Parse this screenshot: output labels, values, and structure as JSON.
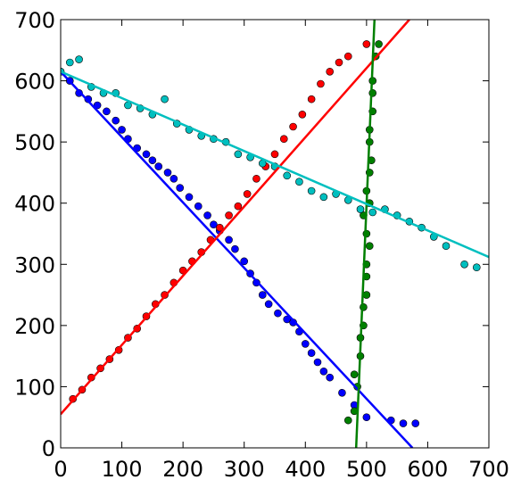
{
  "chart_data": {
    "type": "scatter",
    "title": "",
    "xlabel": "",
    "ylabel": "",
    "xlim": [
      0,
      700
    ],
    "ylim": [
      0,
      700
    ],
    "xticks": [
      0,
      100,
      200,
      300,
      400,
      500,
      600,
      700
    ],
    "yticks": [
      0,
      100,
      200,
      300,
      400,
      500,
      600,
      700
    ],
    "x_tick_labels": [
      "0",
      "100",
      "200",
      "300",
      "400",
      "500",
      "600",
      "700"
    ],
    "y_tick_labels": [
      "0",
      "100",
      "200",
      "300",
      "400",
      "500",
      "600",
      "700"
    ],
    "grid": false,
    "legend": "none",
    "series": [
      {
        "color": "#0000ff",
        "points": [
          [
            0,
            615
          ],
          [
            15,
            600
          ],
          [
            30,
            580
          ],
          [
            45,
            570
          ],
          [
            60,
            560
          ],
          [
            75,
            550
          ],
          [
            90,
            535
          ],
          [
            100,
            520
          ],
          [
            110,
            505
          ],
          [
            125,
            490
          ],
          [
            140,
            480
          ],
          [
            150,
            470
          ],
          [
            160,
            460
          ],
          [
            175,
            450
          ],
          [
            185,
            440
          ],
          [
            195,
            425
          ],
          [
            210,
            410
          ],
          [
            225,
            395
          ],
          [
            240,
            380
          ],
          [
            250,
            365
          ],
          [
            260,
            355
          ],
          [
            275,
            340
          ],
          [
            285,
            325
          ],
          [
            300,
            305
          ],
          [
            310,
            285
          ],
          [
            320,
            270
          ],
          [
            330,
            250
          ],
          [
            340,
            235
          ],
          [
            355,
            220
          ],
          [
            370,
            210
          ],
          [
            380,
            205
          ],
          [
            390,
            190
          ],
          [
            400,
            170
          ],
          [
            410,
            155
          ],
          [
            420,
            140
          ],
          [
            430,
            125
          ],
          [
            440,
            115
          ],
          [
            460,
            90
          ],
          [
            480,
            70
          ],
          [
            500,
            50
          ],
          [
            540,
            45
          ],
          [
            560,
            40
          ],
          [
            580,
            40
          ]
        ],
        "fit_line": [
          [
            0,
            615
          ],
          [
            575,
            0
          ]
        ]
      },
      {
        "color": "#ff0000",
        "points": [
          [
            20,
            80
          ],
          [
            35,
            95
          ],
          [
            50,
            115
          ],
          [
            65,
            130
          ],
          [
            80,
            145
          ],
          [
            95,
            160
          ],
          [
            110,
            180
          ],
          [
            125,
            195
          ],
          [
            140,
            215
          ],
          [
            155,
            235
          ],
          [
            170,
            250
          ],
          [
            185,
            270
          ],
          [
            200,
            290
          ],
          [
            215,
            305
          ],
          [
            230,
            320
          ],
          [
            245,
            340
          ],
          [
            260,
            360
          ],
          [
            275,
            380
          ],
          [
            290,
            395
          ],
          [
            305,
            415
          ],
          [
            320,
            440
          ],
          [
            335,
            460
          ],
          [
            350,
            480
          ],
          [
            365,
            505
          ],
          [
            380,
            525
          ],
          [
            395,
            545
          ],
          [
            410,
            570
          ],
          [
            425,
            595
          ],
          [
            440,
            615
          ],
          [
            455,
            630
          ],
          [
            470,
            640
          ],
          [
            500,
            660
          ]
        ],
        "fit_line": [
          [
            0,
            55
          ],
          [
            570,
            700
          ]
        ]
      },
      {
        "color": "#008000",
        "points": [
          [
            470,
            45
          ],
          [
            480,
            60
          ],
          [
            485,
            100
          ],
          [
            490,
            150
          ],
          [
            495,
            200
          ],
          [
            500,
            250
          ],
          [
            500,
            300
          ],
          [
            500,
            350
          ],
          [
            505,
            400
          ],
          [
            505,
            450
          ],
          [
            505,
            500
          ],
          [
            510,
            550
          ],
          [
            510,
            600
          ],
          [
            515,
            640
          ],
          [
            520,
            660
          ],
          [
            480,
            120
          ],
          [
            490,
            180
          ],
          [
            495,
            230
          ],
          [
            500,
            280
          ],
          [
            505,
            330
          ],
          [
            495,
            380
          ],
          [
            500,
            420
          ],
          [
            508,
            470
          ],
          [
            505,
            520
          ],
          [
            510,
            580
          ]
        ],
        "fit_line": [
          [
            483,
            0
          ],
          [
            513,
            700
          ]
        ]
      },
      {
        "color": "#00bfbf",
        "points": [
          [
            0,
            615
          ],
          [
            15,
            630
          ],
          [
            30,
            635
          ],
          [
            50,
            590
          ],
          [
            70,
            580
          ],
          [
            90,
            580
          ],
          [
            110,
            560
          ],
          [
            130,
            555
          ],
          [
            150,
            545
          ],
          [
            170,
            570
          ],
          [
            190,
            530
          ],
          [
            210,
            520
          ],
          [
            230,
            510
          ],
          [
            250,
            505
          ],
          [
            270,
            500
          ],
          [
            290,
            480
          ],
          [
            310,
            475
          ],
          [
            330,
            465
          ],
          [
            350,
            460
          ],
          [
            370,
            445
          ],
          [
            390,
            435
          ],
          [
            410,
            420
          ],
          [
            430,
            410
          ],
          [
            450,
            415
          ],
          [
            470,
            405
          ],
          [
            490,
            390
          ],
          [
            510,
            385
          ],
          [
            530,
            390
          ],
          [
            550,
            380
          ],
          [
            570,
            370
          ],
          [
            590,
            360
          ],
          [
            610,
            345
          ],
          [
            630,
            330
          ],
          [
            660,
            300
          ],
          [
            680,
            295
          ]
        ],
        "fit_line": [
          [
            0,
            615
          ],
          [
            700,
            312
          ]
        ]
      }
    ]
  }
}
